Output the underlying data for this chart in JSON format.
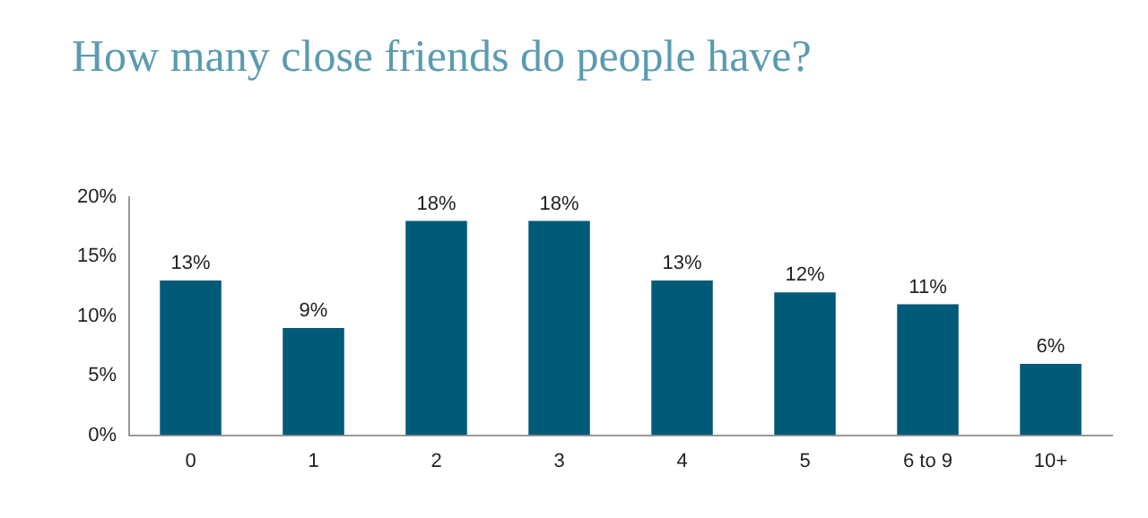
{
  "chart_data": {
    "type": "bar",
    "title": "How many close friends do people have?",
    "categories": [
      "0",
      "1",
      "2",
      "3",
      "4",
      "5",
      "6 to 9",
      "10+"
    ],
    "values": [
      13,
      9,
      18,
      18,
      13,
      12,
      11,
      6
    ],
    "value_labels": [
      "13%",
      "9%",
      "18%",
      "18%",
      "13%",
      "12%",
      "11%",
      "6%"
    ],
    "color": "#005a78",
    "ylim": [
      0,
      20
    ],
    "yticks": [
      {
        "value": 0,
        "label": "0%"
      },
      {
        "value": 5,
        "label": "5%"
      },
      {
        "value": 10,
        "label": "10%"
      },
      {
        "value": 15,
        "label": "15%"
      },
      {
        "value": 20,
        "label": "20%"
      }
    ],
    "grid": false,
    "legend": false
  }
}
